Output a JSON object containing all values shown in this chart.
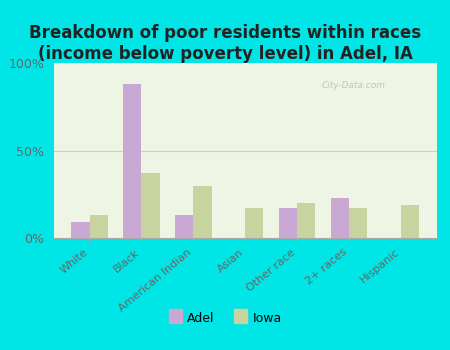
{
  "title": "Breakdown of poor residents within races\n(income below poverty level) in Adel, IA",
  "categories": [
    "White",
    "Black",
    "American Indian",
    "Asian",
    "Other race",
    "2+ races",
    "Hispanic"
  ],
  "adel_values": [
    9,
    88,
    13,
    0,
    17,
    23,
    0
  ],
  "iowa_values": [
    13,
    37,
    30,
    17,
    20,
    17,
    19
  ],
  "adel_color": "#c9a8d4",
  "iowa_color": "#c8d4a0",
  "background_outer": "#00e5e5",
  "background_chart": "#eef5e4",
  "title_fontsize": 12,
  "legend_labels": [
    "Adel",
    "Iowa"
  ],
  "ylim": [
    0,
    100
  ],
  "yticks": [
    0,
    50,
    100
  ],
  "ytick_labels": [
    "0%",
    "50%",
    "100%"
  ],
  "watermark": "City-Data.com"
}
